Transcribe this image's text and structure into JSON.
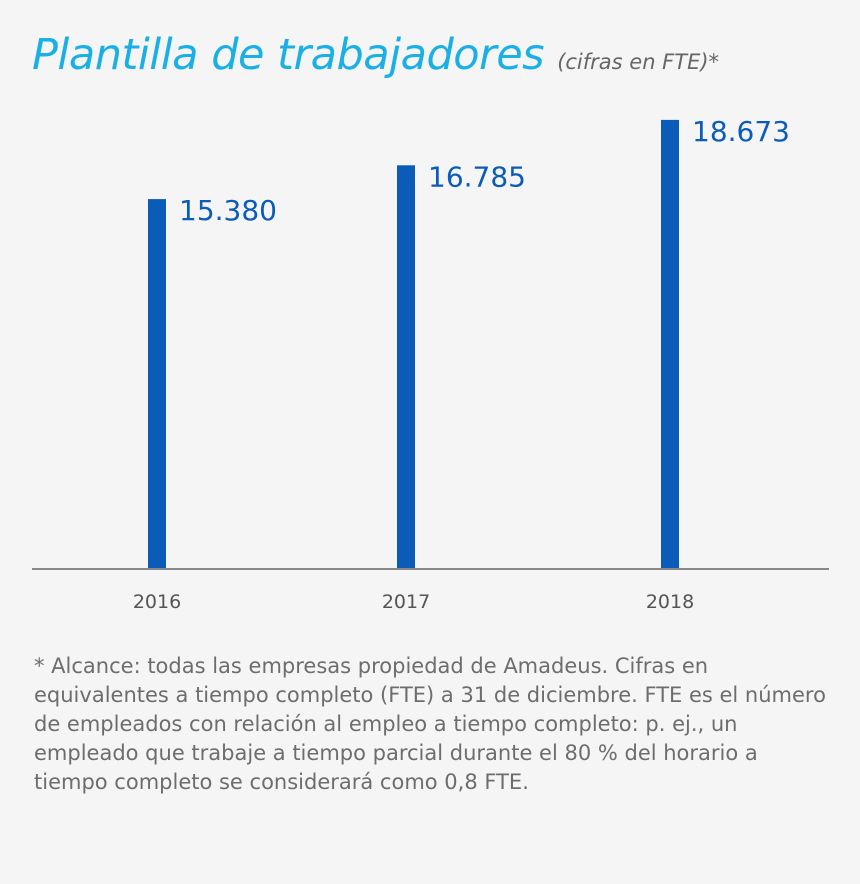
{
  "header": {
    "title": "Plantilla de trabajadores",
    "subtitle": "(cifras en FTE)*"
  },
  "colors": {
    "title": "#1ab0e6",
    "bar": "#0a5cb8",
    "value_label": "#0a5cb8",
    "axis": "#888888",
    "tick_label": "#555555",
    "footnote": "#6d6d6d"
  },
  "chart_data": {
    "type": "bar",
    "categories": [
      "2016",
      "2017",
      "2018"
    ],
    "values": [
      15380,
      16785,
      18673
    ],
    "value_labels": [
      "15.380",
      "16.785",
      "18.673"
    ],
    "ylim": [
      0,
      19500
    ],
    "grid": false,
    "legend": "none"
  },
  "footnote": "* Alcance: todas las empresas propiedad de Amadeus. Cifras en equivalentes a tiempo completo (FTE) a 31 de diciembre. FTE es el número de empleados con relación al empleo a tiempo completo: p. ej., un empleado que trabaje a tiempo parcial durante el 80 % del horario a tiempo completo se considerará como 0,8 FTE."
}
